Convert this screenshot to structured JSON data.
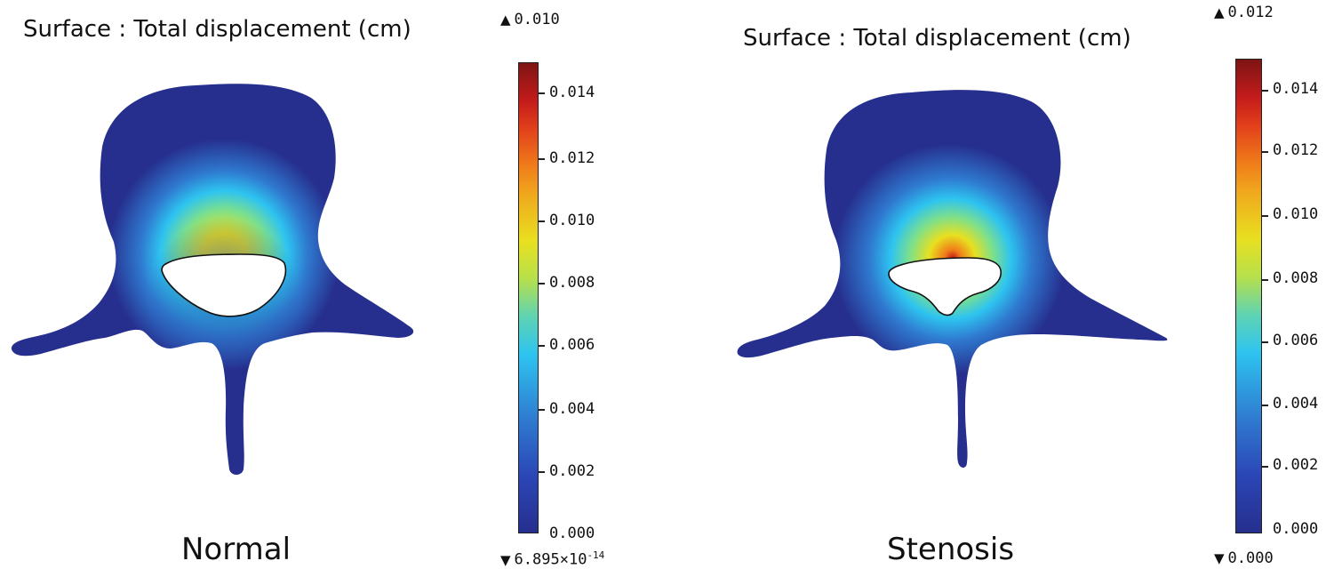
{
  "colors": {
    "dark_blue": "#262f8e",
    "cyan": "#2ec4f0",
    "yellow": "#e8e020",
    "orange": "#f07d1a",
    "red": "#c41b1b",
    "dark_red": "#7e1414"
  },
  "panels": [
    {
      "title": "Surface : Total displacement (cm)",
      "caption": "Normal",
      "max_label": "0.010",
      "min_label_base": "6.895×10",
      "min_label_exp": "-14",
      "colorbar_ticks": [
        "0.014",
        "0.012",
        "0.010",
        "0.008",
        "0.006",
        "0.004",
        "0.002",
        "0.000"
      ]
    },
    {
      "title": "Surface : Total displacement (cm)",
      "caption": "Stenosis",
      "max_label": "0.012",
      "min_label": "0.000",
      "colorbar_ticks": [
        "0.014",
        "0.012",
        "0.010",
        "0.008",
        "0.006",
        "0.004",
        "0.002",
        "0.000"
      ]
    }
  ]
}
